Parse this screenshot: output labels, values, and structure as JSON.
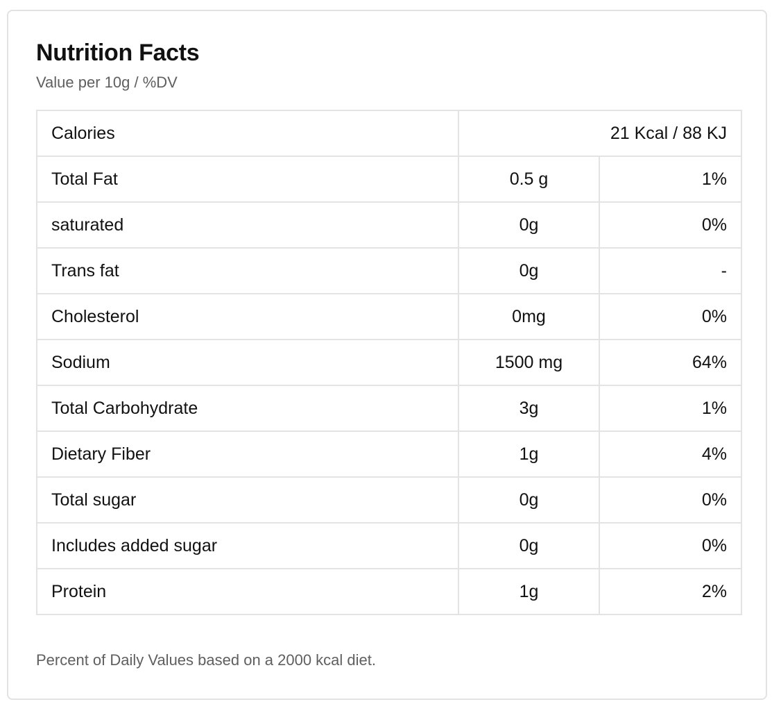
{
  "title": "Nutrition Facts",
  "subtitle": "Value per 10g / %DV",
  "calories": {
    "label": "Calories",
    "value": "21 Kcal / 88 KJ"
  },
  "rows": [
    {
      "name": "Total Fat",
      "amount": "0.5 g",
      "dv": "1%"
    },
    {
      "name": "saturated",
      "amount": "0g",
      "dv": "0%"
    },
    {
      "name": "Trans fat",
      "amount": "0g",
      "dv": "-"
    },
    {
      "name": "Cholesterol",
      "amount": "0mg",
      "dv": "0%"
    },
    {
      "name": "Sodium",
      "amount": "1500 mg",
      "dv": "64%"
    },
    {
      "name": "Total Carbohydrate",
      "amount": "3g",
      "dv": "1%"
    },
    {
      "name": "Dietary Fiber",
      "amount": "1g",
      "dv": "4%"
    },
    {
      "name": "Total sugar",
      "amount": "0g",
      "dv": "0%"
    },
    {
      "name": "Includes added sugar",
      "amount": "0g",
      "dv": "0%"
    },
    {
      "name": "Protein",
      "amount": "1g",
      "dv": "2%"
    }
  ],
  "footnote": "Percent of Daily Values based on a 2000 kcal diet.",
  "colors": {
    "text": "#111111",
    "muted_text": "#5f5f5f",
    "border": "#e3e3e3"
  }
}
